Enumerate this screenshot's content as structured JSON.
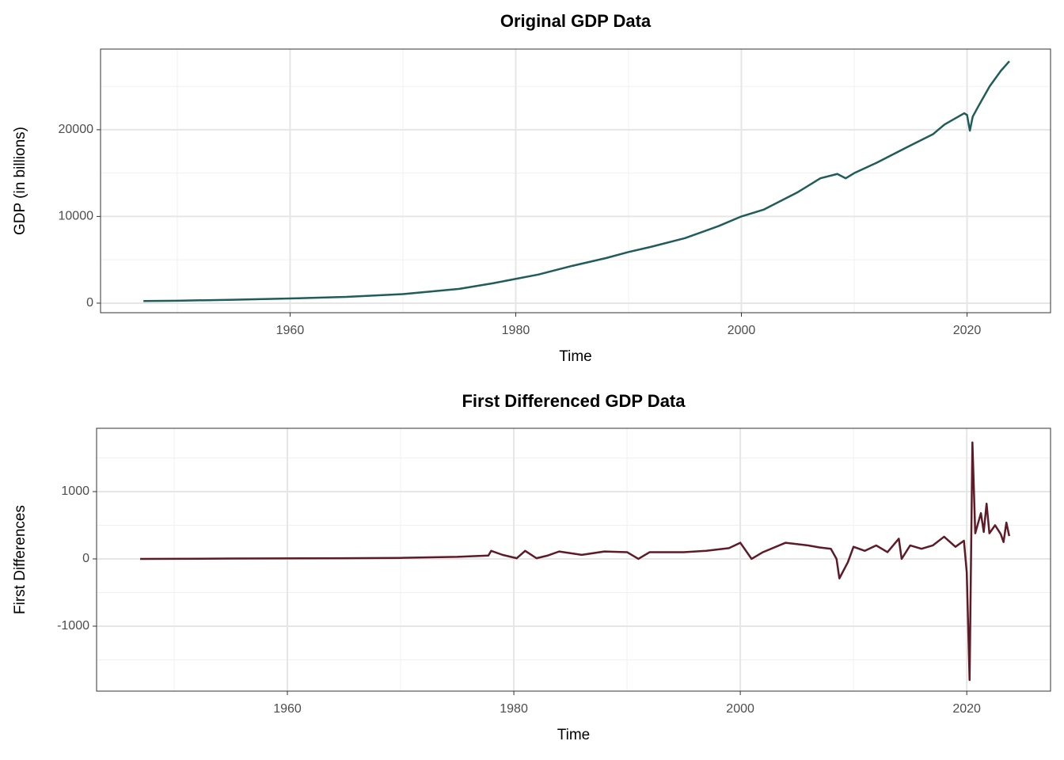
{
  "chart_data": [
    {
      "type": "line",
      "title": "Original GDP Data",
      "xlabel": "Time",
      "ylabel": "GDP (in billions)",
      "color": "#1f5c5a",
      "grid": true,
      "x": [
        1947,
        1950,
        1955,
        1960,
        1965,
        1970,
        1975,
        1978,
        1980,
        1982,
        1985,
        1988,
        1990,
        1992,
        1995,
        1998,
        2000,
        2002,
        2005,
        2007,
        2008.5,
        2009.25,
        2010,
        2012,
        2015,
        2017,
        2018,
        2019.75,
        2020,
        2020.25,
        2020.5,
        2021,
        2022,
        2023,
        2023.75
      ],
      "values": [
        243,
        280,
        400,
        540,
        720,
        1050,
        1650,
        2300,
        2800,
        3300,
        4300,
        5200,
        5900,
        6500,
        7500,
        8900,
        10000,
        10800,
        12800,
        14400,
        14900,
        14400,
        15000,
        16200,
        18200,
        19500,
        20600,
        21900,
        21700,
        19900,
        21500,
        22700,
        25000,
        26800,
        27900
      ],
      "xlim": [
        1943.2,
        2027.4
      ],
      "ylim": [
        -1100,
        29300
      ],
      "xticks": [
        1960,
        1980,
        2000,
        2020
      ],
      "yticks": [
        0,
        10000,
        20000
      ]
    },
    {
      "type": "line",
      "title": "First Differenced GDP Data",
      "xlabel": "Time",
      "ylabel": "First Differences",
      "color": "#5e1a26",
      "grid": true,
      "x": [
        1947,
        1955,
        1965,
        1970,
        1975,
        1977.75,
        1978,
        1979,
        1980.25,
        1981,
        1982,
        1983,
        1984,
        1986,
        1988,
        1990,
        1991,
        1992,
        1995,
        1997,
        1999,
        2000,
        2001,
        2002,
        2004,
        2006,
        2007,
        2008,
        2008.5,
        2008.75,
        2009.5,
        2010,
        2011,
        2012,
        2013,
        2014,
        2014.25,
        2015,
        2016,
        2017,
        2018,
        2019,
        2019.75,
        2020,
        2020.25,
        2020.5,
        2020.75,
        2021.25,
        2021.5,
        2021.75,
        2022,
        2022.5,
        2023,
        2023.25,
        2023.5,
        2023.75
      ],
      "values": [
        0,
        5,
        10,
        15,
        30,
        50,
        120,
        60,
        10,
        120,
        10,
        50,
        110,
        60,
        110,
        100,
        0,
        100,
        100,
        120,
        160,
        240,
        0,
        100,
        240,
        200,
        170,
        150,
        0,
        -290,
        -50,
        180,
        120,
        200,
        100,
        300,
        0,
        200,
        150,
        200,
        330,
        180,
        270,
        -200,
        -1800,
        1730,
        380,
        680,
        400,
        820,
        380,
        500,
        370,
        250,
        540,
        340
      ],
      "xlim": [
        1943.15,
        2027.4
      ],
      "ylim": [
        -1965,
        1941
      ],
      "xticks": [
        1960,
        1980,
        2000,
        2020
      ],
      "yticks": [
        -1000,
        0,
        1000
      ]
    }
  ]
}
